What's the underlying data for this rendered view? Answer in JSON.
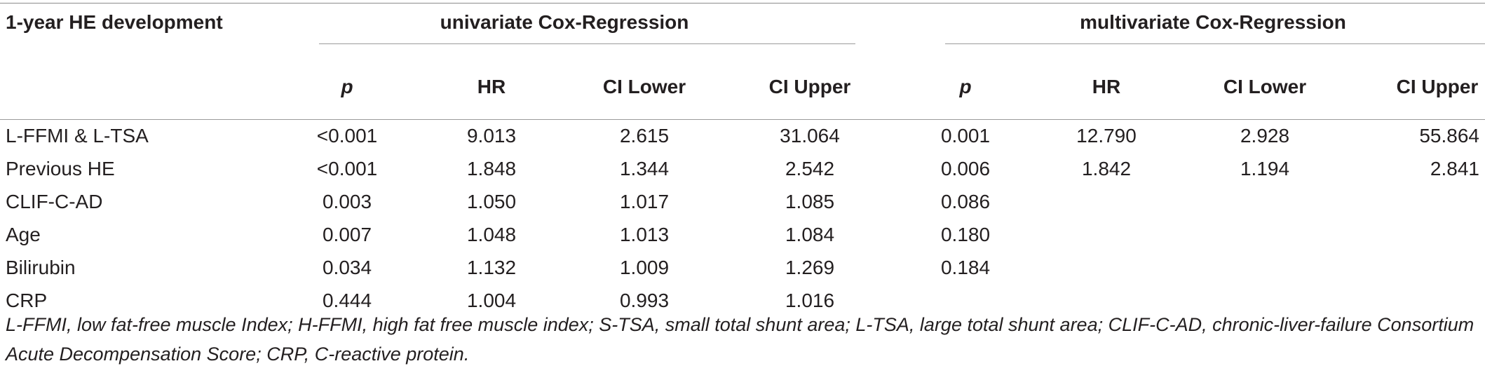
{
  "table": {
    "row_header": "1-year HE development",
    "group_univariate": "univariate Cox-Regression",
    "group_multivariate": "multivariate Cox-Regression",
    "columns": [
      "p",
      "HR",
      "CI Lower",
      "CI Upper",
      "p",
      "HR",
      "CI Lower",
      "CI Upper"
    ],
    "rows": [
      {
        "label": "L-FFMI & L-TSA",
        "uni": [
          "<0.001",
          "9.013",
          "2.615",
          "31.064"
        ],
        "multi": [
          "0.001",
          "12.790",
          "2.928",
          "55.864"
        ]
      },
      {
        "label": "Previous HE",
        "uni": [
          "<0.001",
          "1.848",
          "1.344",
          "2.542"
        ],
        "multi": [
          "0.006",
          "1.842",
          "1.194",
          "2.841"
        ]
      },
      {
        "label": "CLIF-C-AD",
        "uni": [
          "0.003",
          "1.050",
          "1.017",
          "1.085"
        ],
        "multi": [
          "0.086",
          "",
          "",
          ""
        ]
      },
      {
        "label": "Age",
        "uni": [
          "0.007",
          "1.048",
          "1.013",
          "1.084"
        ],
        "multi": [
          "0.180",
          "",
          "",
          ""
        ]
      },
      {
        "label": "Bilirubin",
        "uni": [
          "0.034",
          "1.132",
          "1.009",
          "1.269"
        ],
        "multi": [
          "0.184",
          "",
          "",
          ""
        ]
      },
      {
        "label": "CRP",
        "uni": [
          "0.444",
          "1.004",
          "0.993",
          "1.016"
        ],
        "multi": [
          "",
          "",
          "",
          ""
        ]
      }
    ],
    "footnote": "L-FFMI, low fat-free muscle Index; H-FFMI, high fat free muscle index; S-TSA, small total shunt area; L-TSA, large total shunt area; CLIF-C-AD, chronic-liver-failure Consortium Acute Decompensation Score; CRP, C-reactive protein."
  }
}
